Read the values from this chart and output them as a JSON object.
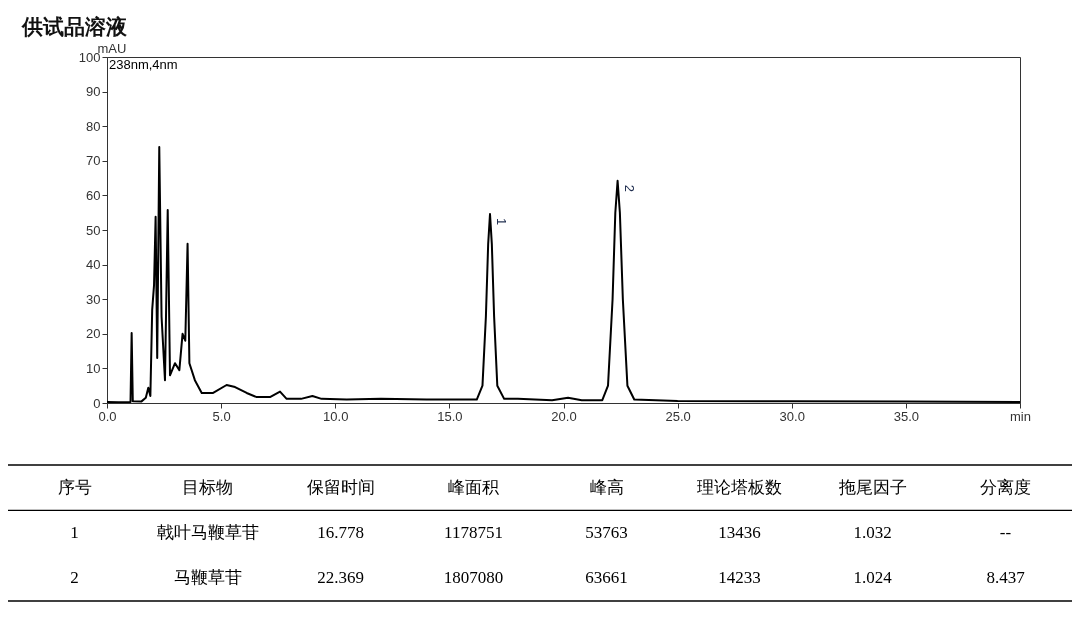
{
  "chart_data": [
    {
      "type": "line",
      "title": "供试品溶液",
      "xlabel": null,
      "ylabel": "mAU",
      "series": [
        {
          "color": "#000000",
          "x": [
            0,
            0.5,
            1.03,
            1.08,
            1.13,
            1.5,
            1.7,
            1.81,
            1.9,
            1.98,
            2.06,
            2.13,
            2.2,
            2.29,
            2.39,
            2.54,
            2.66,
            2.76,
            2.98,
            3.17,
            3.31,
            3.43,
            3.53,
            3.61,
            3.85,
            4.15,
            4.65,
            5.24,
            5.61,
            6.12,
            6.56,
            7.14,
            7.58,
            7.87,
            8.5,
            9.0,
            9.4,
            10.5,
            12,
            14,
            16.2,
            16.45,
            16.6,
            16.7,
            16.78,
            16.86,
            16.96,
            17.1,
            17.4,
            18,
            19.5,
            20.2,
            20.8,
            21.7,
            21.95,
            22.15,
            22.27,
            22.37,
            22.47,
            22.6,
            22.8,
            23.1,
            25,
            30,
            35,
            40
          ],
          "values": [
            0.3,
            0.2,
            0.3,
            20.2,
            0.5,
            0.4,
            1.5,
            4.4,
            2,
            27,
            34,
            53.8,
            13,
            74,
            25,
            6.6,
            55.8,
            8,
            11.5,
            9.5,
            20,
            18,
            46,
            11.5,
            6.6,
            2.9,
            2.9,
            5.2,
            4.6,
            2.9,
            1.7,
            1.7,
            3.3,
            1.2,
            1.2,
            2.0,
            1.2,
            1.0,
            1.2,
            1.0,
            1.0,
            5,
            25,
            46,
            54.6,
            46,
            25,
            5,
            1.2,
            1.2,
            0.8,
            1.5,
            0.8,
            0.8,
            5,
            30,
            55,
            64.2,
            55,
            30,
            5,
            1.0,
            0.6,
            0.5,
            0.4,
            0.3
          ]
        }
      ],
      "xlim": [
        0,
        40
      ],
      "ylim": [
        0,
        100
      ],
      "xticks": [
        {
          "value": 0,
          "label": "0.0"
        },
        {
          "value": 5,
          "label": "5.0"
        },
        {
          "value": 10,
          "label": "10.0"
        },
        {
          "value": 15,
          "label": "15.0"
        },
        {
          "value": 20,
          "label": "20.0"
        },
        {
          "value": 25,
          "label": "25.0"
        },
        {
          "value": 30,
          "label": "30.0"
        },
        {
          "value": 35,
          "label": "35.0"
        },
        {
          "value": 40,
          "label": "min"
        }
      ],
      "yticks": [
        0,
        10,
        20,
        30,
        40,
        50,
        60,
        70,
        80,
        90,
        100
      ],
      "annotations": [
        "238nm,4nm",
        {
          "text": "1",
          "x": 16.78,
          "y": 54.6
        },
        {
          "text": "2",
          "x": 22.37,
          "y": 64.2
        }
      ]
    },
    {
      "type": "other",
      "categories": [
        "序号",
        "目标物",
        "保留时间",
        "峰面积",
        "峰高",
        "理论塔板数",
        "拖尾因子",
        "分离度"
      ],
      "cell_labels": [
        [
          "1",
          "戟叶马鞭草苷",
          "16.778",
          "1178751",
          "53763",
          "13436",
          "1.032",
          "--"
        ],
        [
          "2",
          "马鞭草苷",
          "22.369",
          "1807080",
          "63661",
          "14233",
          "1.024",
          "8.437"
        ]
      ]
    }
  ]
}
